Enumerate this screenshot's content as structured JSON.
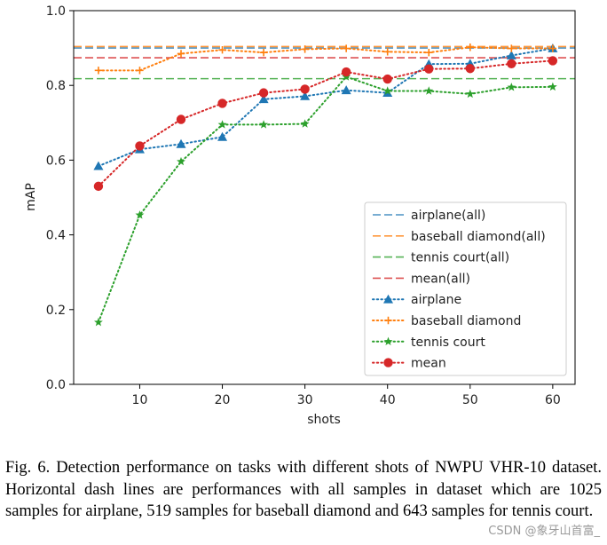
{
  "chart_data": {
    "type": "line",
    "xlabel": "shots",
    "ylabel": "mAP",
    "xlim": [
      2,
      62.7
    ],
    "ylim": [
      0,
      1.0
    ],
    "xticks": [
      10,
      20,
      30,
      40,
      50,
      60
    ],
    "yticks": [
      0.0,
      0.2,
      0.4,
      0.6,
      0.8,
      1.0
    ],
    "ytick_labels": [
      "0.0",
      "0.2",
      "0.4",
      "0.6",
      "0.8",
      "1.0"
    ],
    "legend_position": "lower-right",
    "x": [
      5,
      10,
      15,
      20,
      25,
      30,
      35,
      40,
      45,
      50,
      55,
      60
    ],
    "hlines": [
      {
        "name": "airplane(all)",
        "value": 0.9,
        "color": "#1f77b4"
      },
      {
        "name": "baseball diamond(all)",
        "value": 0.904,
        "color": "#ff7f0e"
      },
      {
        "name": "tennis court(all)",
        "value": 0.818,
        "color": "#2ca02c"
      },
      {
        "name": "mean(all)",
        "value": 0.874,
        "color": "#d62728"
      }
    ],
    "series": [
      {
        "name": "airplane",
        "marker": "triangle",
        "color": "#1f77b4",
        "values": [
          0.584,
          0.629,
          0.643,
          0.662,
          0.763,
          0.771,
          0.787,
          0.78,
          0.857,
          0.858,
          0.88,
          0.899
        ]
      },
      {
        "name": "baseball diamond",
        "marker": "plus",
        "color": "#ff7f0e",
        "values": [
          0.84,
          0.84,
          0.885,
          0.895,
          0.888,
          0.897,
          0.899,
          0.89,
          0.888,
          0.902,
          0.899,
          0.899
        ]
      },
      {
        "name": "tennis court",
        "marker": "star",
        "color": "#2ca02c",
        "values": [
          0.166,
          0.453,
          0.596,
          0.695,
          0.695,
          0.697,
          0.823,
          0.785,
          0.785,
          0.777,
          0.795,
          0.796
        ]
      },
      {
        "name": "mean",
        "marker": "circle",
        "color": "#d62728",
        "values": [
          0.53,
          0.638,
          0.709,
          0.752,
          0.78,
          0.79,
          0.836,
          0.817,
          0.844,
          0.845,
          0.858,
          0.866
        ]
      }
    ]
  },
  "caption": "Fig. 6.  Detection performance on tasks with different shots of NWPU VHR-10 dataset. Horizontal dash lines are performances with all samples in dataset which are 1025 samples for airplane, 519 samples for baseball diamond and 643 samples for tennis court.",
  "watermark": "CSDN @象牙山首富_"
}
